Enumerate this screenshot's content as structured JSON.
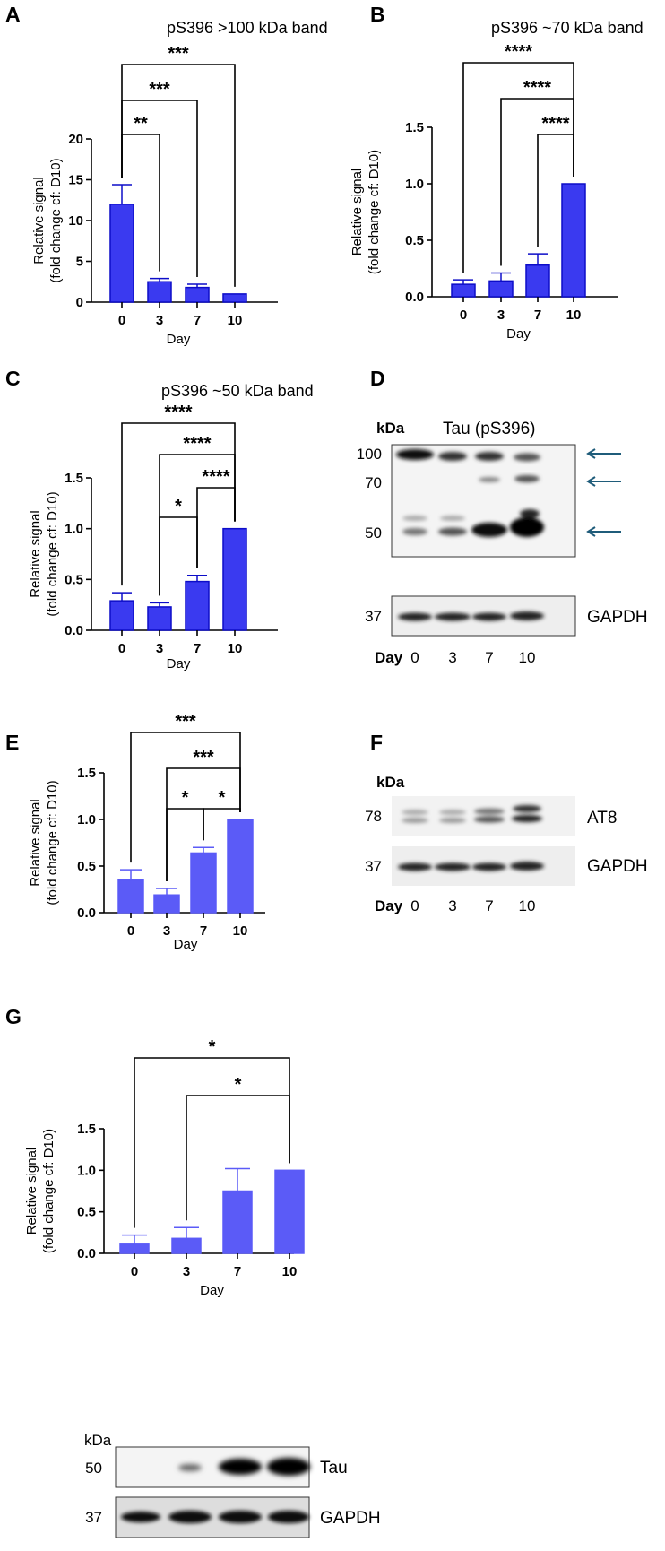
{
  "chart_data": [
    {
      "id": "A",
      "panel_label": "A",
      "type": "bar",
      "title": "pS396 >100 kDa band",
      "xlabel": "Day",
      "ylabel": [
        "Relative signal",
        "(fold change cf: D10)"
      ],
      "categories": [
        "0",
        "3",
        "7",
        "10"
      ],
      "values": [
        12.0,
        2.5,
        1.8,
        1.0
      ],
      "errors": [
        2.4,
        0.4,
        0.4,
        0
      ],
      "ylim": [
        0,
        20
      ],
      "yticks": [
        0,
        5,
        10,
        15,
        20
      ],
      "significance": [
        {
          "from": "0",
          "to": "3",
          "label": "**"
        },
        {
          "from": "0",
          "to": "7",
          "label": "***"
        },
        {
          "from": "0",
          "to": "10",
          "label": "***"
        }
      ],
      "bar_color": "#3a3af0",
      "bar_edge": "#0d0dc8"
    },
    {
      "id": "B",
      "panel_label": "B",
      "type": "bar",
      "title": "pS396 ~70 kDa band",
      "xlabel": "Day",
      "ylabel": [
        "Relative signal",
        "(fold change cf: D10)"
      ],
      "categories": [
        "0",
        "3",
        "7",
        "10"
      ],
      "values": [
        0.11,
        0.14,
        0.28,
        1.0
      ],
      "errors": [
        0.04,
        0.07,
        0.1,
        0
      ],
      "ylim": [
        0,
        1.5
      ],
      "yticks": [
        0.0,
        0.5,
        1.0,
        1.5
      ],
      "significance": [
        {
          "from": "7",
          "to": "10",
          "label": "****"
        },
        {
          "from": "3",
          "to": "10",
          "label": "****"
        },
        {
          "from": "0",
          "to": "10",
          "label": "****"
        }
      ],
      "bar_color": "#3a3af0",
      "bar_edge": "#0d0dc8"
    },
    {
      "id": "C",
      "panel_label": "C",
      "type": "bar",
      "title": "pS396 ~50 kDa band",
      "xlabel": "Day",
      "ylabel": [
        "Relative signal",
        "(fold change cf: D10)"
      ],
      "categories": [
        "0",
        "3",
        "7",
        "10"
      ],
      "values": [
        0.29,
        0.23,
        0.48,
        1.0
      ],
      "errors": [
        0.08,
        0.04,
        0.06,
        0
      ],
      "ylim": [
        0,
        1.5
      ],
      "yticks": [
        0.0,
        0.5,
        1.0,
        1.5
      ],
      "significance": [
        {
          "from": "3",
          "to": "7",
          "label": "*"
        },
        {
          "from": "7",
          "to": "10",
          "label": "****"
        },
        {
          "from": "3",
          "to": "10",
          "label": "****"
        },
        {
          "from": "0",
          "to": "10",
          "label": "****"
        }
      ],
      "bar_color": "#3a3af0",
      "bar_edge": "#0d0dc8"
    },
    {
      "id": "E",
      "panel_label": "E",
      "type": "bar",
      "xlabel": "Day",
      "ylabel": [
        "Relative signal",
        "(fold change cf: D10)"
      ],
      "categories": [
        "0",
        "3",
        "7",
        "10"
      ],
      "values": [
        0.35,
        0.19,
        0.64,
        1.0
      ],
      "errors": [
        0.11,
        0.07,
        0.06,
        0
      ],
      "ylim": [
        0,
        1.5
      ],
      "yticks": [
        0.0,
        0.5,
        1.0,
        1.5
      ],
      "significance": [
        {
          "from": "3",
          "to": "7",
          "label": "*"
        },
        {
          "from": "7",
          "to": "10",
          "label": "*"
        },
        {
          "from": "3",
          "to": "10",
          "label": "***"
        },
        {
          "from": "0",
          "to": "10",
          "label": "***"
        }
      ],
      "bar_color": "#5b5bf7",
      "bar_edge": "#5b5bf7"
    },
    {
      "id": "G",
      "panel_label": "G",
      "type": "bar",
      "xlabel": "Day",
      "ylabel": [
        "Relative signal",
        "(fold change cf: D10)"
      ],
      "categories": [
        "0",
        "3",
        "7",
        "10"
      ],
      "values": [
        0.11,
        0.18,
        0.75,
        1.0
      ],
      "errors": [
        0.11,
        0.13,
        0.27,
        0
      ],
      "ylim": [
        0,
        1.5
      ],
      "yticks": [
        0.0,
        0.5,
        1.0,
        1.5
      ],
      "significance": [
        {
          "from": "3",
          "to": "10",
          "label": "*"
        },
        {
          "from": "0",
          "to": "10",
          "label": "*"
        }
      ],
      "bar_color": "#5b5bf7",
      "bar_edge": "#5b5bf7"
    }
  ],
  "blots": {
    "D": {
      "panel_label": "D",
      "unit": "kDa",
      "title": "Tau (pS396)",
      "markers": [
        "100",
        "70",
        "50"
      ],
      "loading_marker": "37",
      "loading_label": "GAPDH",
      "day_label": "Day",
      "days": [
        "0",
        "3",
        "7",
        "10"
      ]
    },
    "F": {
      "panel_label": "F",
      "unit": "kDa",
      "marker": "78",
      "label": "AT8",
      "loading_marker": "37",
      "loading_label": "GAPDH",
      "day_label": "Day",
      "days": [
        "0",
        "3",
        "7",
        "10"
      ]
    },
    "G": {
      "unit": "kDa",
      "marker": "50",
      "label": "Tau",
      "loading_marker": "37",
      "loading_label": "GAPDH"
    }
  }
}
